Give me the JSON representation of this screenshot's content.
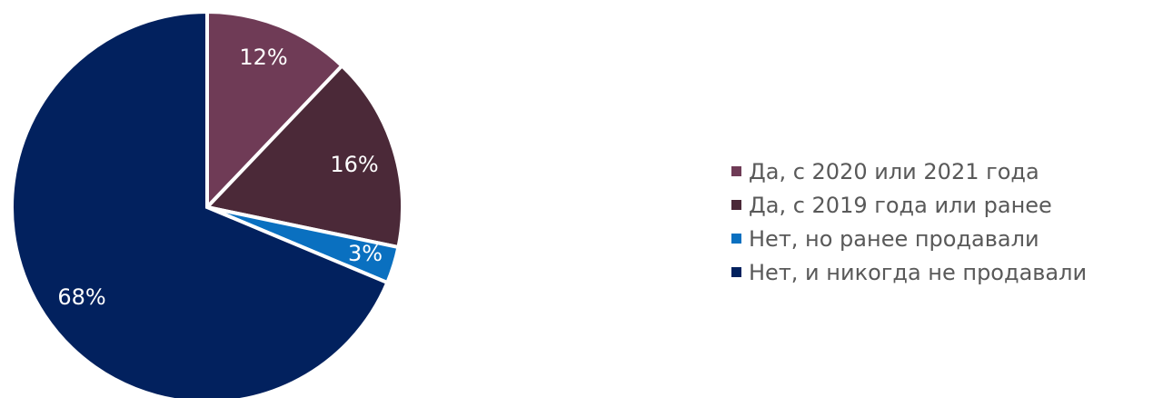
{
  "chart_data": {
    "type": "pie",
    "start_angle_deg": 0,
    "direction": "clockwise",
    "slices": [
      {
        "label": "Да, с 2020 или 2021 года",
        "value": 12,
        "data_label": "12%",
        "color": "#6f3b56"
      },
      {
        "label": "Да, с 2019 года или ранее",
        "value": 16,
        "data_label": "16%",
        "color": "#4b2938"
      },
      {
        "label": "Нет, но ранее продавали",
        "value": 3,
        "data_label": "3%",
        "color": "#0a70c0"
      },
      {
        "label": "Нет, и никогда не продавали",
        "value": 68,
        "data_label": "68%",
        "color": "#02215e"
      }
    ],
    "legend_position": "right"
  }
}
